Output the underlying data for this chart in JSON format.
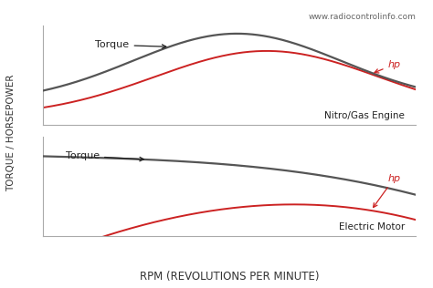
{
  "background_color": "#ffffff",
  "website_text": "www.radiocontrolinfo.com",
  "xlabel": "RPM (REVOLUTIONS PER MINUTE)",
  "ylabel": "TORQUE / HORSEPOWER",
  "top_label": "Nitro/Gas Engine",
  "bottom_label": "Electric Motor",
  "torque_color": "#555555",
  "hp_color": "#cc2222",
  "torque_label": "Torque",
  "hp_label": "hp",
  "annotation_color": "#222222",
  "spine_color": "#aaaaaa"
}
